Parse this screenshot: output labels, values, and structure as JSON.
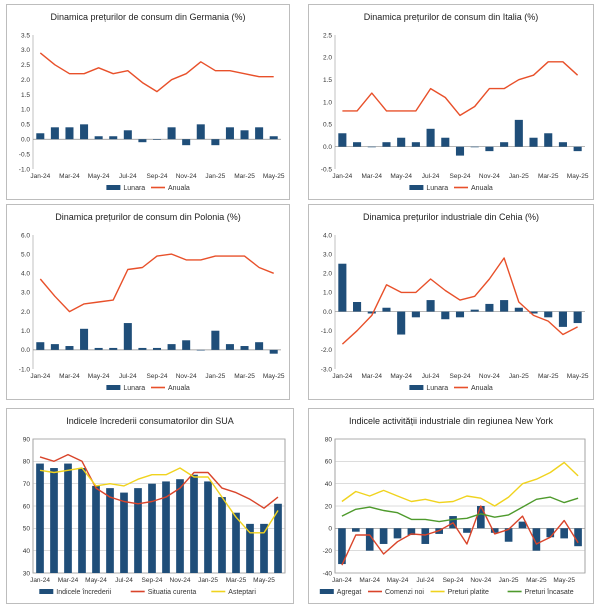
{
  "colors": {
    "bar": "#1f4e79",
    "annual": "#e8502a",
    "current": "#d9442a",
    "expect": "#f0d31e",
    "green": "#4e9a2c",
    "paid_yellow": "#f0d31e"
  },
  "chart_data": [
    {
      "type": "bar",
      "title": "Dinamica prețurilor de consum din Germania (%)",
      "x_tick_labels": [
        "Jan-24",
        "Mar-24",
        "May-24",
        "Jul-24",
        "Sep-24",
        "Nov-24",
        "Jan-25",
        "Mar-25",
        "May-25"
      ],
      "ylim": [
        -1.0,
        3.5
      ],
      "y_step": 0.5,
      "y_decimals": 1,
      "categories": [
        "Jan-24",
        "Feb-24",
        "Mar-24",
        "Apr-24",
        "May-24",
        "Jun-24",
        "Jul-24",
        "Aug-24",
        "Sep-24",
        "Oct-24",
        "Nov-24",
        "Dec-24",
        "Jan-25",
        "Feb-25",
        "Mar-25",
        "Apr-25",
        "May-25"
      ],
      "series": [
        {
          "name": "Lunara",
          "kind": "bar",
          "values": [
            0.2,
            0.4,
            0.4,
            0.5,
            0.1,
            0.1,
            0.3,
            -0.1,
            0.0,
            0.4,
            -0.2,
            0.5,
            -0.2,
            0.4,
            0.3,
            0.4,
            0.1
          ]
        },
        {
          "name": "Anuala",
          "kind": "line",
          "values": [
            2.9,
            2.5,
            2.2,
            2.2,
            2.4,
            2.2,
            2.3,
            1.9,
            1.6,
            2.0,
            2.2,
            2.6,
            2.3,
            2.3,
            2.2,
            2.1,
            2.1
          ]
        }
      ]
    },
    {
      "type": "bar",
      "title": "Dinamica prețurilor de consum din Italia (%)",
      "x_tick_labels": [
        "Jan-24",
        "Mar-24",
        "May-24",
        "Jul-24",
        "Sep-24",
        "Nov-24",
        "Jan-25",
        "Mar-25",
        "May-25"
      ],
      "ylim": [
        -0.5,
        2.5
      ],
      "y_step": 0.5,
      "y_decimals": 1,
      "categories": [
        "Jan-24",
        "Feb-24",
        "Mar-24",
        "Apr-24",
        "May-24",
        "Jun-24",
        "Jul-24",
        "Aug-24",
        "Sep-24",
        "Oct-24",
        "Nov-24",
        "Dec-24",
        "Jan-25",
        "Feb-25",
        "Mar-25",
        "Apr-25",
        "May-25"
      ],
      "series": [
        {
          "name": "Lunara",
          "kind": "bar",
          "values": [
            0.3,
            0.1,
            0.0,
            0.1,
            0.2,
            0.1,
            0.4,
            0.2,
            -0.2,
            0.0,
            -0.1,
            0.1,
            0.6,
            0.2,
            0.3,
            0.1,
            -0.1
          ]
        },
        {
          "name": "Anuala",
          "kind": "line",
          "values": [
            0.8,
            0.8,
            1.2,
            0.8,
            0.8,
            0.8,
            1.3,
            1.1,
            0.7,
            0.9,
            1.3,
            1.3,
            1.5,
            1.6,
            1.9,
            1.9,
            1.6
          ]
        }
      ]
    },
    {
      "type": "bar",
      "title": "Dinamica prețurilor de consum din Polonia (%)",
      "x_tick_labels": [
        "Jan-24",
        "Mar-24",
        "May-24",
        "Jul-24",
        "Sep-24",
        "Nov-24",
        "Jan-25",
        "Mar-25",
        "May-25"
      ],
      "ylim": [
        -1.0,
        6.0
      ],
      "y_step": 1.0,
      "y_decimals": 1,
      "categories": [
        "Jan-24",
        "Feb-24",
        "Mar-24",
        "Apr-24",
        "May-24",
        "Jun-24",
        "Jul-24",
        "Aug-24",
        "Sep-24",
        "Oct-24",
        "Nov-24",
        "Dec-24",
        "Jan-25",
        "Feb-25",
        "Mar-25",
        "Apr-25",
        "May-25"
      ],
      "series": [
        {
          "name": "Lunara",
          "kind": "bar",
          "values": [
            0.4,
            0.3,
            0.2,
            1.1,
            0.1,
            0.1,
            1.4,
            0.1,
            0.1,
            0.3,
            0.5,
            0.0,
            1.0,
            0.3,
            0.2,
            0.4,
            -0.2
          ]
        },
        {
          "name": "Anuala",
          "kind": "line",
          "values": [
            3.7,
            2.8,
            2.0,
            2.4,
            2.5,
            2.6,
            4.2,
            4.3,
            4.9,
            5.0,
            4.7,
            4.7,
            4.9,
            4.9,
            4.9,
            4.3,
            4.0
          ]
        }
      ]
    },
    {
      "type": "bar",
      "title": "Dinamica prețurilor industriale din Cehia (%)",
      "x_tick_labels": [
        "Jan-24",
        "Mar-24",
        "May-24",
        "Jul-24",
        "Sep-24",
        "Nov-24",
        "Jan-25",
        "Mar-25",
        "May-25"
      ],
      "ylim": [
        -3.0,
        4.0
      ],
      "y_step": 1.0,
      "y_decimals": 1,
      "categories": [
        "Jan-24",
        "Feb-24",
        "Mar-24",
        "Apr-24",
        "May-24",
        "Jun-24",
        "Jul-24",
        "Aug-24",
        "Sep-24",
        "Oct-24",
        "Nov-24",
        "Dec-24",
        "Jan-25",
        "Feb-25",
        "Mar-25",
        "Apr-25",
        "May-25"
      ],
      "series": [
        {
          "name": "Lunara",
          "kind": "bar",
          "values": [
            2.5,
            0.5,
            -0.1,
            0.2,
            -1.2,
            -0.3,
            0.6,
            -0.4,
            -0.3,
            0.1,
            0.4,
            0.6,
            0.2,
            -0.1,
            -0.3,
            -0.8,
            -0.6
          ]
        },
        {
          "name": "Anuala",
          "kind": "line",
          "values": [
            -1.7,
            -1.0,
            -0.2,
            1.4,
            1.0,
            1.0,
            1.7,
            1.1,
            0.6,
            0.8,
            1.7,
            2.8,
            0.5,
            -0.2,
            -0.5,
            -1.2,
            -0.8
          ]
        }
      ]
    },
    {
      "type": "bar",
      "title": "Indicele încrederii consumatorilor din SUA",
      "x_tick_labels": [
        "Jan-24",
        "Mar-24",
        "May-24",
        "Jul-24",
        "Sep-24",
        "Nov-24",
        "Jan-25",
        "Mar-25",
        "May-25"
      ],
      "ylim": [
        30,
        90
      ],
      "y_step": 10,
      "y_decimals": 0,
      "baseline": 30,
      "categories": [
        "Jan-24",
        "Feb-24",
        "Mar-24",
        "Apr-24",
        "May-24",
        "Jun-24",
        "Jul-24",
        "Aug-24",
        "Sep-24",
        "Oct-24",
        "Nov-24",
        "Dec-24",
        "Jan-25",
        "Feb-25",
        "Mar-25",
        "Apr-25",
        "May-25",
        "Jun-25"
      ],
      "series": [
        {
          "name": "Indicele încrederii",
          "kind": "bar",
          "values": [
            79,
            77,
            79,
            77,
            69,
            68,
            66,
            68,
            70,
            71,
            72,
            74,
            71,
            64,
            57,
            52,
            52,
            61
          ]
        },
        {
          "name": "Situatia curenta",
          "kind": "line",
          "values": [
            82,
            80,
            83,
            80,
            68,
            64,
            62,
            61,
            62,
            64,
            68,
            75,
            75,
            68,
            66,
            63,
            59,
            64
          ]
        },
        {
          "name": "Asteptari",
          "kind": "line",
          "values": [
            76,
            75,
            76,
            77,
            69,
            70,
            69,
            72,
            74,
            74,
            77,
            73,
            73,
            64,
            55,
            48,
            48,
            58
          ]
        }
      ]
    },
    {
      "type": "bar",
      "title": "Indicele activității industriale din regiunea New York",
      "x_tick_labels": [
        "Jan-24",
        "Mar-24",
        "May-24",
        "Jul-24",
        "Sep-24",
        "Nov-24",
        "Jan-25",
        "Mar-25",
        "May-25"
      ],
      "ylim": [
        -40,
        80
      ],
      "y_step": 20,
      "y_decimals": 0,
      "categories": [
        "Jan-24",
        "Feb-24",
        "Mar-24",
        "Apr-24",
        "May-24",
        "Jun-24",
        "Jul-24",
        "Aug-24",
        "Sep-24",
        "Oct-24",
        "Nov-24",
        "Dec-24",
        "Jan-25",
        "Feb-25",
        "Mar-25",
        "Apr-25",
        "May-25",
        "Jun-25"
      ],
      "series": [
        {
          "name": "Agregat",
          "kind": "bar",
          "values": [
            -32,
            -3,
            -20,
            -14,
            -9,
            -6,
            -14,
            -5,
            11,
            -4,
            20,
            -4,
            -12,
            6,
            -20,
            -8,
            -9,
            -16
          ]
        },
        {
          "name": "Comenzi noi",
          "kind": "line",
          "values": [
            -33,
            -6,
            -6,
            -23,
            -12,
            -5,
            -6,
            -2,
            5,
            -14,
            20,
            -5,
            -1,
            11,
            -14,
            -8,
            7,
            -13
          ]
        },
        {
          "name": "Preturi platite",
          "kind": "line",
          "values": [
            24,
            33,
            29,
            34,
            29,
            24,
            26,
            23,
            24,
            29,
            27,
            20,
            28,
            40,
            44,
            50,
            59,
            47
          ]
        },
        {
          "name": "Preturi încasate",
          "kind": "line",
          "values": [
            11,
            17,
            19,
            16,
            14,
            8,
            8,
            6,
            8,
            9,
            13,
            10,
            12,
            19,
            26,
            28,
            23,
            27
          ]
        }
      ]
    }
  ]
}
